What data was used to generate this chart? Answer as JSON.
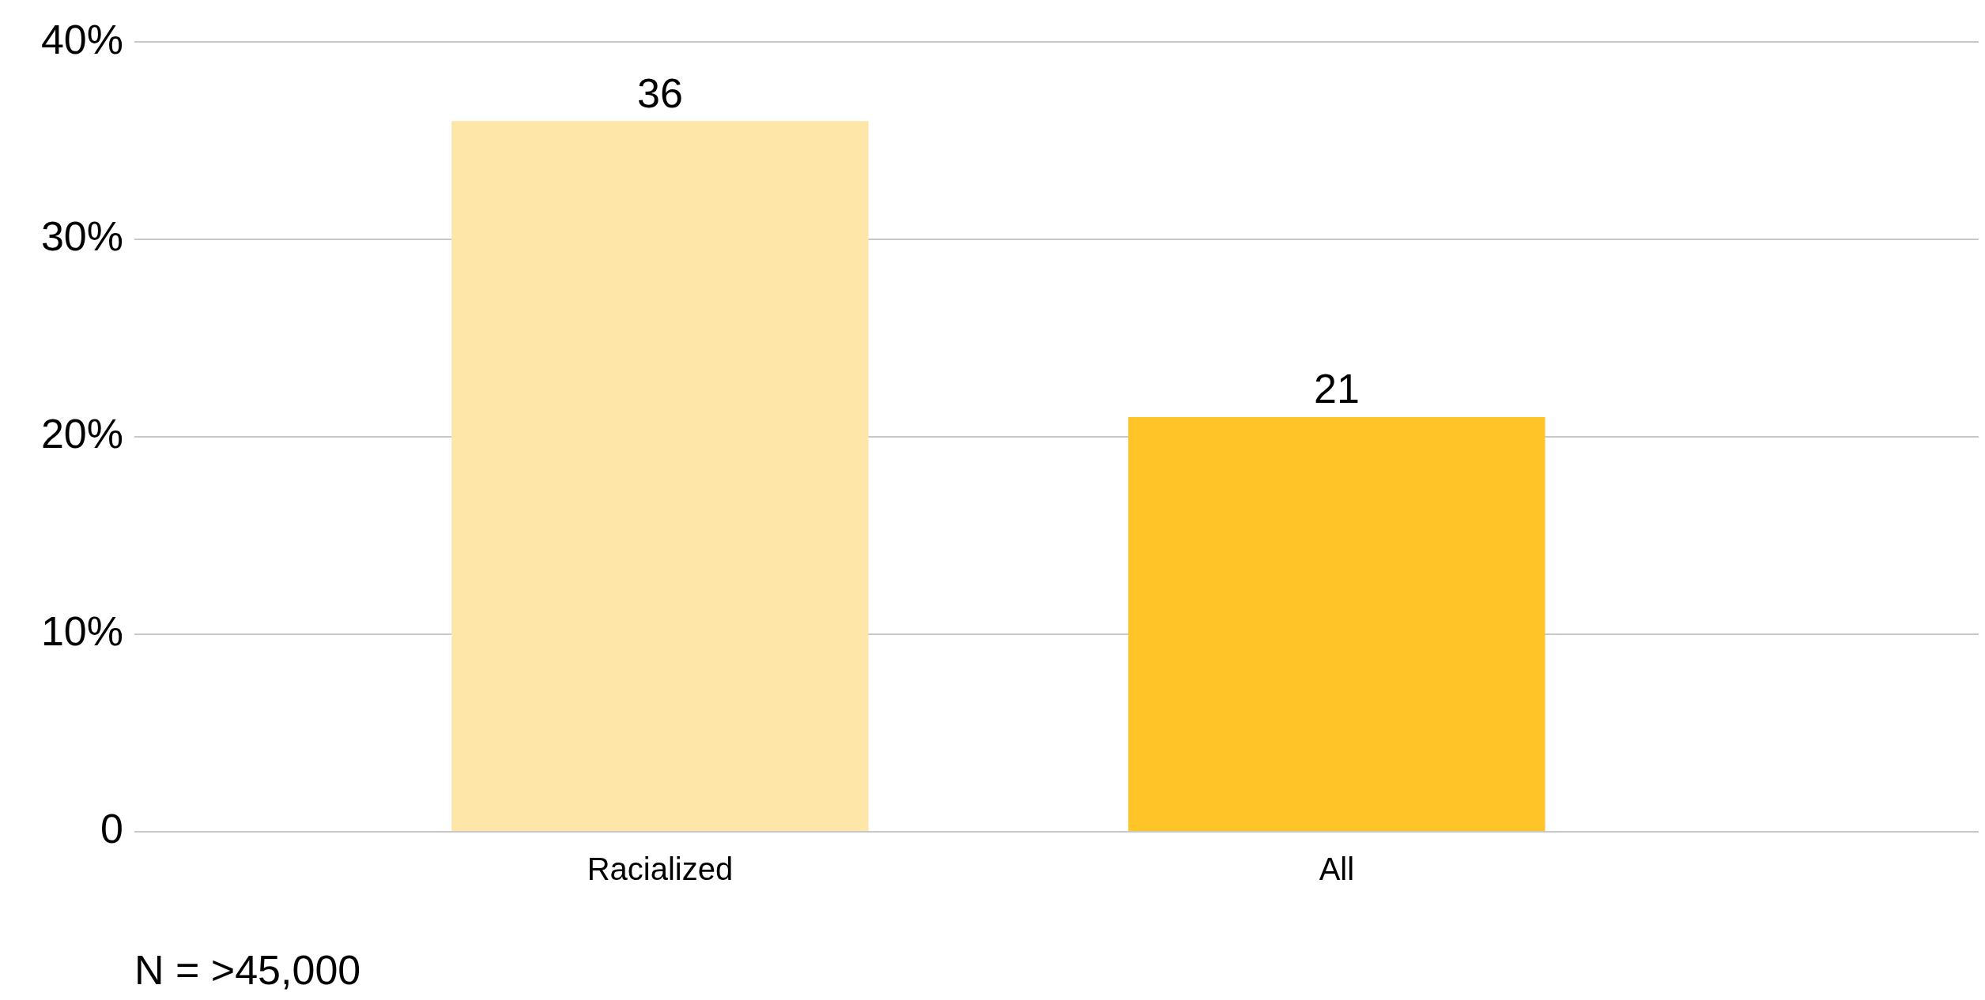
{
  "chart_data": {
    "type": "bar",
    "categories": [
      "Racialized",
      "All"
    ],
    "values": [
      36,
      21
    ],
    "colors": [
      "#fde6a8",
      "#fec428"
    ],
    "ylim": [
      0,
      40
    ],
    "yticks": [
      0,
      {
        "value": 10,
        "label": "10%"
      },
      {
        "value": 20,
        "label": "20%"
      },
      {
        "value": 30,
        "label": "30%"
      },
      {
        "value": 40,
        "label": "40%"
      }
    ],
    "grid": "y",
    "legend": false,
    "data_labels": true,
    "annotations": [
      "N = >45,000"
    ]
  }
}
